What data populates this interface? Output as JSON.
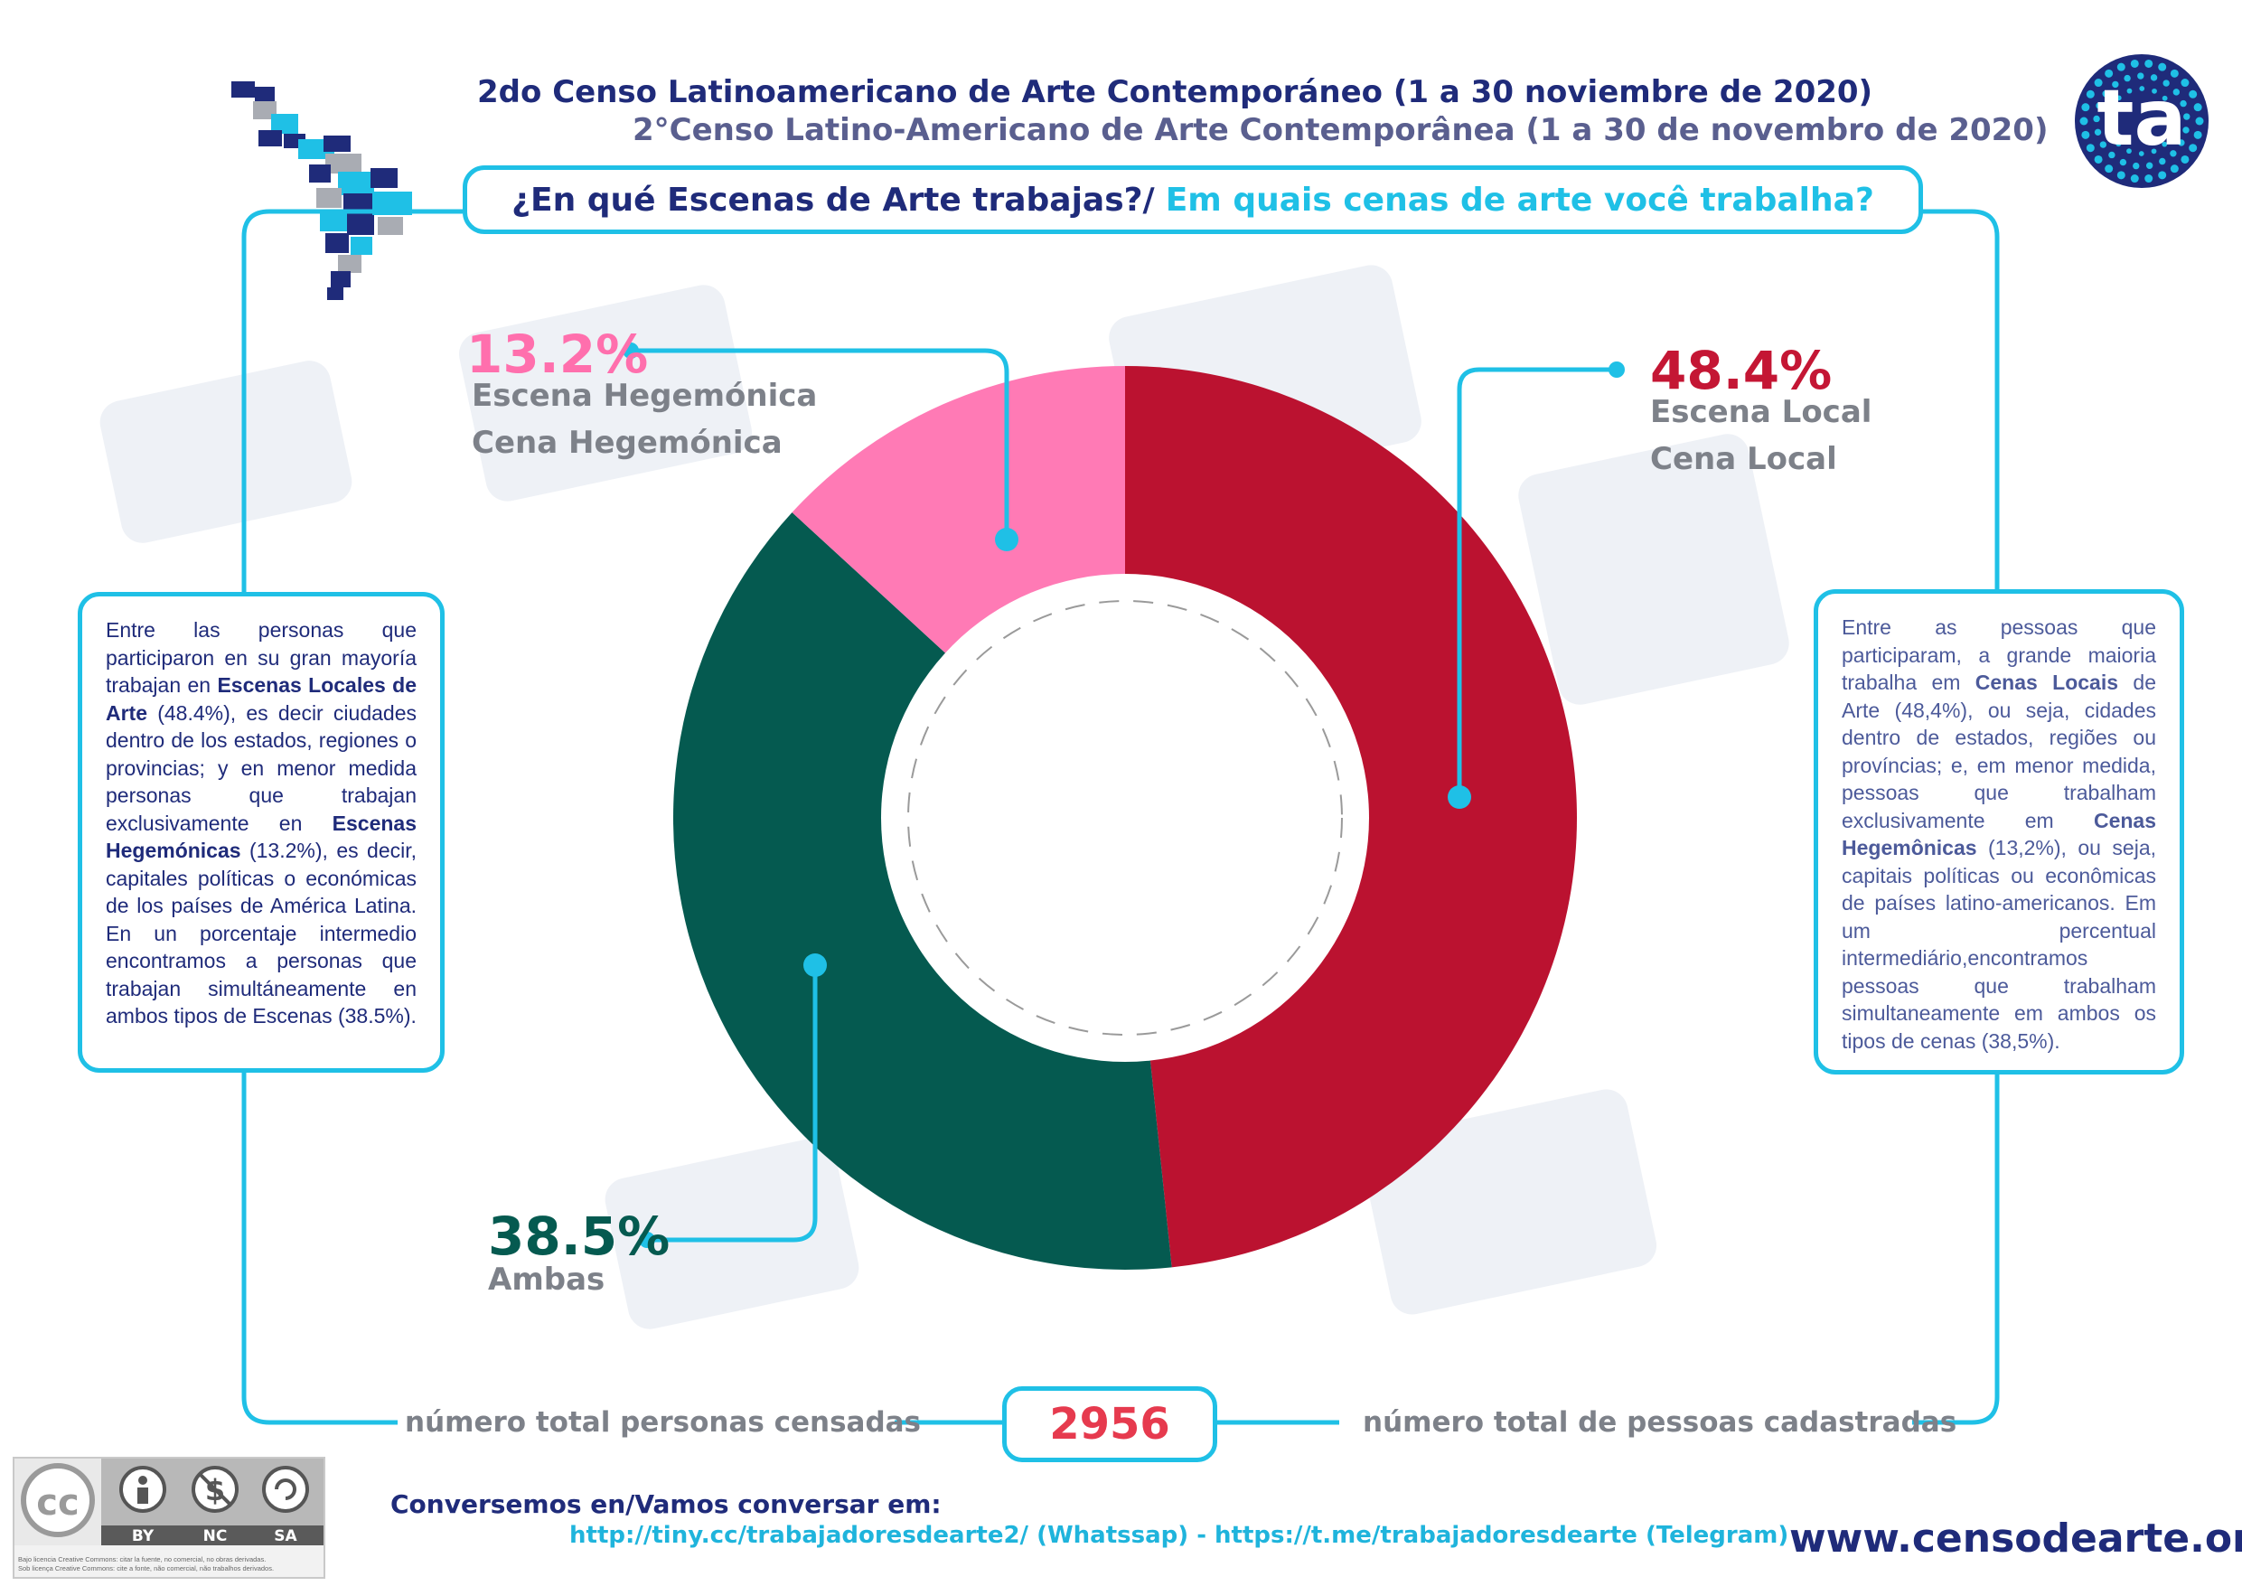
{
  "header": {
    "title_es": "2do Censo Latinoamericano de Arte Contemporáneo (1 a 30 noviembre de 2020)",
    "title_pt": "2°Censo Latino-Americano de Arte Contemporânea (1 a 30 de novembro de 2020)",
    "question_es": "¿En qué Escenas de Arte trabajas?/",
    "question_pt": "Em quais cenas de arte você trabalha?",
    "logo_text": "ta"
  },
  "chart_data": {
    "type": "pie",
    "categories": [
      "Escena Local",
      "Ambas",
      "Escena Hegemónica"
    ],
    "values": [
      48.4,
      38.5,
      13.2
    ],
    "colors": [
      "#bb1230",
      "#055a50",
      "#ff7ab5"
    ],
    "slices": [
      {
        "pct_label": "48.4%",
        "label_es": "Escena Local",
        "label_pt": "Cena Local",
        "color": "#bb1230"
      },
      {
        "pct_label": "38.5%",
        "label_es": "Ambas",
        "color": "#055a50"
      },
      {
        "pct_label": "13.2%",
        "label_es": "Escena Hegemónica",
        "label_pt": "Cena Hegemónica",
        "color": "#ff7ab5"
      }
    ]
  },
  "paragraphs": {
    "es": {
      "p1": "Entre las personas que participaron en su gran mayoría trabajan en ",
      "b1": "Escenas Locales de Arte",
      "p2": " (48.4%), es decir ciudades dentro de los estados, regiones o provincias; y en menor medida personas que trabajan exclusivamente en ",
      "b2": "Escenas Hegemónicas",
      "p3": " (13.2%), es decir, capitales políticas o económicas de los países de América Latina. En un porcentaje intermedio encontramos a personas que trabajan simultáneamente en ambos tipos de Escenas (38.5%)."
    },
    "pt": {
      "p1": "Entre as pessoas que participaram, a grande maioria trabalha em ",
      "b1": "Cenas Locais",
      "p2": " de Arte (48,4%), ou seja, cidades dentro de estados, regiões ou províncias; e, em menor medida, pessoas que trabalham exclusivamente em ",
      "b2": "Cenas Hegemônicas",
      "p3": " (13,2%), ou seja, capitais políticas ou econômicas de países latino-americanos. Em um percentual intermediário,encontramos pessoas que trabalham simultaneamente em ambos os tipos de cenas (38,5%)."
    }
  },
  "totals": {
    "label_es": "número total personas censadas",
    "label_pt": "número total de pessoas cadastradas",
    "value": "2956"
  },
  "footer": {
    "contact_title": "Conversemos en/Vamos conversar em:",
    "contact_links": "http://tiny.cc/trabajadoresdearte2/ (Whatssap) - https://t.me/trabajadoresdearte (Telegram)",
    "website": "www.censodearte.org",
    "cc_badges": [
      "BY",
      "NC",
      "SA"
    ],
    "cc_note_es": "Bajo licencia Creative Commons: citar la fuente, no comercial, no obras derivadas.",
    "cc_note_pt": "Sob licença Creative Commons: cite a fonte, não comercial, não trabalhos derivados."
  }
}
